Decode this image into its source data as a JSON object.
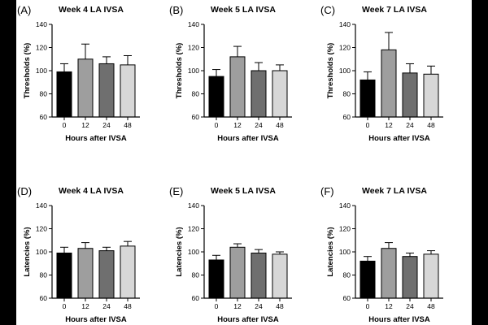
{
  "figure": {
    "background": "#ffffff",
    "letterbox": "#000000"
  },
  "chart_data": [
    {
      "type": "bar",
      "panel_letter": "(A)",
      "title": "Week 4 LA IVSA",
      "xlabel": "Hours after IVSA",
      "ylabel": "Thresholds (%)",
      "categories": [
        "0",
        "12",
        "24",
        "48"
      ],
      "values": [
        99,
        110,
        106,
        105
      ],
      "errors": [
        7,
        13,
        6,
        8
      ],
      "colors": [
        "#000000",
        "#9e9e9e",
        "#6f6f6f",
        "#d7d7d7"
      ],
      "ylim": [
        60,
        140
      ],
      "yticks": [
        60,
        80,
        100,
        120,
        140
      ]
    },
    {
      "type": "bar",
      "panel_letter": "(B)",
      "title": "Week 5 LA IVSA",
      "xlabel": "Hours after IVSA",
      "ylabel": "Thresholds (%)",
      "categories": [
        "0",
        "12",
        "24",
        "48"
      ],
      "values": [
        95,
        112,
        100,
        100
      ],
      "errors": [
        6,
        9,
        7,
        5
      ],
      "colors": [
        "#000000",
        "#9e9e9e",
        "#6f6f6f",
        "#d7d7d7"
      ],
      "ylim": [
        60,
        140
      ],
      "yticks": [
        60,
        80,
        100,
        120,
        140
      ]
    },
    {
      "type": "bar",
      "panel_letter": "(C)",
      "title": "Week 7 LA IVSA",
      "xlabel": "Hours after IVSA",
      "ylabel": "Thresholds (%)",
      "categories": [
        "0",
        "12",
        "24",
        "48"
      ],
      "values": [
        92,
        118,
        98,
        97
      ],
      "errors": [
        7,
        15,
        8,
        7
      ],
      "colors": [
        "#000000",
        "#9e9e9e",
        "#6f6f6f",
        "#d7d7d7"
      ],
      "ylim": [
        60,
        140
      ],
      "yticks": [
        60,
        80,
        100,
        120,
        140
      ]
    },
    {
      "type": "bar",
      "panel_letter": "(D)",
      "title": "Week 4 LA IVSA",
      "xlabel": "Hours after IVSA",
      "ylabel": "Latencies (%)",
      "categories": [
        "0",
        "12",
        "24",
        "48"
      ],
      "values": [
        99,
        103,
        101,
        105
      ],
      "errors": [
        5,
        5,
        3,
        4
      ],
      "colors": [
        "#000000",
        "#9e9e9e",
        "#6f6f6f",
        "#d7d7d7"
      ],
      "ylim": [
        60,
        140
      ],
      "yticks": [
        60,
        80,
        100,
        120,
        140
      ]
    },
    {
      "type": "bar",
      "panel_letter": "(E)",
      "title": "Week 5 LA IVSA",
      "xlabel": "Hours after IVSA",
      "ylabel": "Latencies (%)",
      "categories": [
        "0",
        "12",
        "24",
        "48"
      ],
      "values": [
        93,
        104,
        99,
        98
      ],
      "errors": [
        4,
        3,
        3,
        2
      ],
      "colors": [
        "#000000",
        "#9e9e9e",
        "#6f6f6f",
        "#d7d7d7"
      ],
      "ylim": [
        60,
        140
      ],
      "yticks": [
        60,
        80,
        100,
        120,
        140
      ]
    },
    {
      "type": "bar",
      "panel_letter": "(F)",
      "title": "Week 7 LA IVSA",
      "xlabel": "Hours after IVSA",
      "ylabel": "Latencies (%)",
      "categories": [
        "0",
        "12",
        "24",
        "48"
      ],
      "values": [
        92,
        103,
        96,
        98
      ],
      "errors": [
        4,
        5,
        3,
        3
      ],
      "colors": [
        "#000000",
        "#9e9e9e",
        "#6f6f6f",
        "#d7d7d7"
      ],
      "ylim": [
        60,
        140
      ],
      "yticks": [
        60,
        80,
        100,
        120,
        140
      ]
    }
  ]
}
